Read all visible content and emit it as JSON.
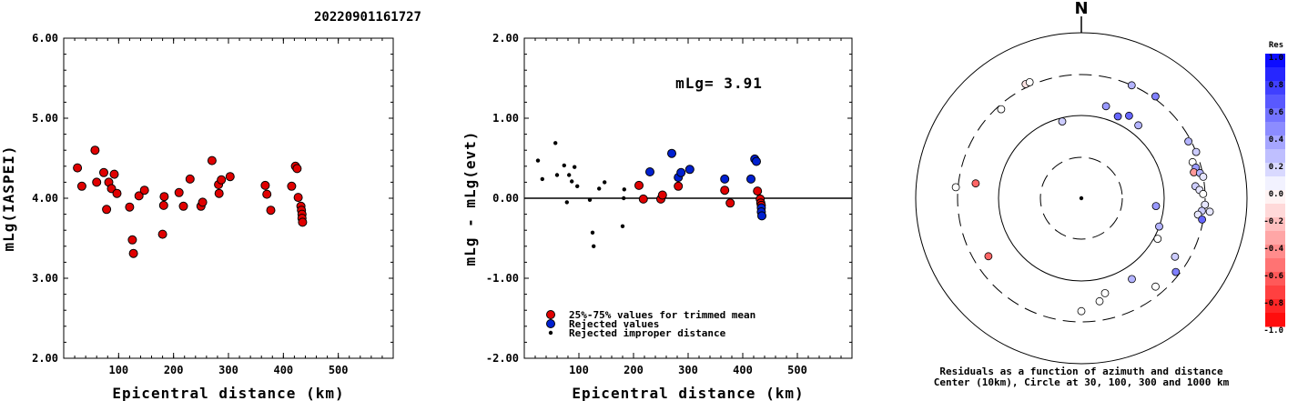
{
  "title": "20220901161727",
  "chart_data": [
    {
      "type": "scatter",
      "xlabel": "Epicentral distance (km)",
      "ylabel": "mLg(IASPEI)",
      "xlim": [
        0,
        600
      ],
      "ylim": [
        2.0,
        6.0
      ],
      "xticks": [
        "100",
        "200",
        "300",
        "400",
        "500"
      ],
      "yticks": [
        "2.00",
        "3.00",
        "4.00",
        "5.00",
        "6.00"
      ],
      "series": [
        {
          "color": "#e00000",
          "points": [
            [
              25,
              4.38
            ],
            [
              33,
              4.15
            ],
            [
              57,
              4.6
            ],
            [
              60,
              4.2
            ],
            [
              73,
              4.32
            ],
            [
              78,
              3.86
            ],
            [
              82,
              4.2
            ],
            [
              87,
              4.12
            ],
            [
              92,
              4.3
            ],
            [
              97,
              4.06
            ],
            [
              120,
              3.89
            ],
            [
              125,
              3.48
            ],
            [
              127,
              3.31
            ],
            [
              137,
              4.03
            ],
            [
              147,
              4.1
            ],
            [
              180,
              3.55
            ],
            [
              182,
              3.91
            ],
            [
              183,
              4.02
            ],
            [
              210,
              4.07
            ],
            [
              218,
              3.9
            ],
            [
              230,
              4.24
            ],
            [
              250,
              3.9
            ],
            [
              253,
              3.95
            ],
            [
              270,
              4.47
            ],
            [
              282,
              4.17
            ],
            [
              283,
              4.06
            ],
            [
              287,
              4.23
            ],
            [
              303,
              4.27
            ],
            [
              367,
              4.16
            ],
            [
              370,
              4.05
            ],
            [
              377,
              3.85
            ],
            [
              415,
              4.15
            ],
            [
              422,
              4.4
            ],
            [
              425,
              4.37
            ],
            [
              427,
              4.01
            ],
            [
              432,
              3.9
            ],
            [
              433,
              3.85
            ],
            [
              434,
              3.8
            ],
            [
              434,
              3.75
            ],
            [
              435,
              3.7
            ]
          ]
        }
      ]
    },
    {
      "type": "scatter",
      "xlabel": "Epicentral distance (km)",
      "ylabel": "mLg - mLg(evt)",
      "xlim": [
        0,
        600
      ],
      "ylim": [
        -2.0,
        2.0
      ],
      "xticks": [
        "100",
        "200",
        "300",
        "400",
        "500"
      ],
      "yticks": [
        "-2.00",
        "-1.00",
        "0.00",
        "1.00",
        "2.00"
      ],
      "annotation": "mLg= 3.91",
      "legend": [
        {
          "label": "25%-75% values for trimmed mean",
          "color": "#e00000"
        },
        {
          "label": "Rejected values",
          "color": "#0020d0"
        },
        {
          "label": "Rejected improper distance",
          "color": "#000000"
        }
      ],
      "series": [
        {
          "name": "25%-75% values for trimmed mean",
          "color": "#e00000",
          "points": [
            [
              210,
              0.16
            ],
            [
              218,
              -0.01
            ],
            [
              250,
              -0.01
            ],
            [
              253,
              0.04
            ],
            [
              282,
              0.15
            ],
            [
              367,
              0.1
            ],
            [
              377,
              -0.06
            ],
            [
              427,
              0.09
            ],
            [
              432,
              -0.01
            ],
            [
              433,
              -0.06
            ],
            [
              434,
              -0.09
            ]
          ]
        },
        {
          "name": "Rejected values",
          "color": "#0020d0",
          "points": [
            [
              230,
              0.33
            ],
            [
              270,
              0.56
            ],
            [
              282,
              0.26
            ],
            [
              287,
              0.32
            ],
            [
              303,
              0.36
            ],
            [
              367,
              0.24
            ],
            [
              415,
              0.24
            ],
            [
              422,
              0.49
            ],
            [
              425,
              0.46
            ],
            [
              434,
              -0.12
            ],
            [
              434,
              -0.17
            ],
            [
              435,
              -0.22
            ]
          ]
        },
        {
          "name": "Rejected improper distance",
          "color": "#000000",
          "points": [
            [
              25,
              0.47
            ],
            [
              33,
              0.24
            ],
            [
              57,
              0.69
            ],
            [
              60,
              0.29
            ],
            [
              73,
              0.41
            ],
            [
              78,
              -0.05
            ],
            [
              82,
              0.29
            ],
            [
              87,
              0.21
            ],
            [
              92,
              0.39
            ],
            [
              97,
              0.15
            ],
            [
              120,
              -0.02
            ],
            [
              125,
              -0.43
            ],
            [
              127,
              -0.6
            ],
            [
              137,
              0.12
            ],
            [
              147,
              0.2
            ],
            [
              180,
              -0.35
            ],
            [
              182,
              0.0
            ],
            [
              183,
              0.11
            ]
          ]
        }
      ]
    }
  ],
  "polar": {
    "north_label": "N",
    "caption_line1": "Residuals as a function of azimuth and distance",
    "caption_line2": "Center (10km), Circle at 30, 100, 300 and 1000 km",
    "colorbar_title": "Res",
    "colorbar_ticks": [
      "1.0",
      "0.8",
      "0.6",
      "0.4",
      "0.2",
      "0.0",
      "-0.2",
      "-0.4",
      "-0.6",
      "-0.8",
      "-1.0"
    ],
    "points": [
      {
        "az": 334,
        "dist": 330,
        "res": -0.1
      },
      {
        "az": 336,
        "dist": 330,
        "res": 0.0
      },
      {
        "az": 24,
        "dist": 300,
        "res": 0.3
      },
      {
        "az": 36,
        "dist": 320,
        "res": 0.5
      },
      {
        "az": 318,
        "dist": 270,
        "res": 0.0
      },
      {
        "az": 275,
        "dist": 320,
        "res": 0.0
      },
      {
        "az": 62,
        "dist": 280,
        "res": 0.3
      },
      {
        "az": 68,
        "dist": 300,
        "res": 0.2
      },
      {
        "az": 72,
        "dist": 250,
        "res": 0.0
      },
      {
        "az": 75,
        "dist": 260,
        "res": 0.4
      },
      {
        "az": 77,
        "dist": 240,
        "res": -0.4
      },
      {
        "az": 78,
        "dist": 280,
        "res": 0.3
      },
      {
        "az": 80,
        "dist": 300,
        "res": 0.1
      },
      {
        "az": 84,
        "dist": 235,
        "res": 0.2
      },
      {
        "az": 86,
        "dist": 260,
        "res": 0.1
      },
      {
        "az": 88,
        "dist": 285,
        "res": 0.0
      },
      {
        "az": 93,
        "dist": 300,
        "res": 0.1
      },
      {
        "az": 96,
        "dist": 280,
        "res": 0.2
      },
      {
        "az": 98,
        "dist": 255,
        "res": 0.1
      },
      {
        "az": 100,
        "dist": 290,
        "res": 0.6
      },
      {
        "az": 15,
        "dist": 140,
        "res": 0.4
      },
      {
        "az": 24,
        "dist": 120,
        "res": 0.6
      },
      {
        "az": 30,
        "dist": 140,
        "res": 0.6
      },
      {
        "az": 38,
        "dist": 130,
        "res": 0.3
      },
      {
        "az": 346,
        "dist": 90,
        "res": 0.2
      },
      {
        "az": 96,
        "dist": 80,
        "res": 0.4
      },
      {
        "az": 110,
        "dist": 100,
        "res": 0.3
      },
      {
        "az": 118,
        "dist": 110,
        "res": 0.0
      },
      {
        "az": 122,
        "dist": 210,
        "res": 0.2
      },
      {
        "az": 128,
        "dist": 270,
        "res": 0.5
      },
      {
        "az": 148,
        "dist": 140,
        "res": 0.3
      },
      {
        "az": 140,
        "dist": 240,
        "res": 0.0
      },
      {
        "az": 166,
        "dist": 150,
        "res": 0.0
      },
      {
        "az": 170,
        "dist": 180,
        "res": 0.0
      },
      {
        "az": 180,
        "dist": 225,
        "res": 0.0
      },
      {
        "az": 238,
        "dist": 205,
        "res": -0.6
      },
      {
        "az": 278,
        "dist": 190,
        "res": -0.6
      },
      {
        "az": 96,
        "dist": 350,
        "res": 0.1
      }
    ]
  }
}
